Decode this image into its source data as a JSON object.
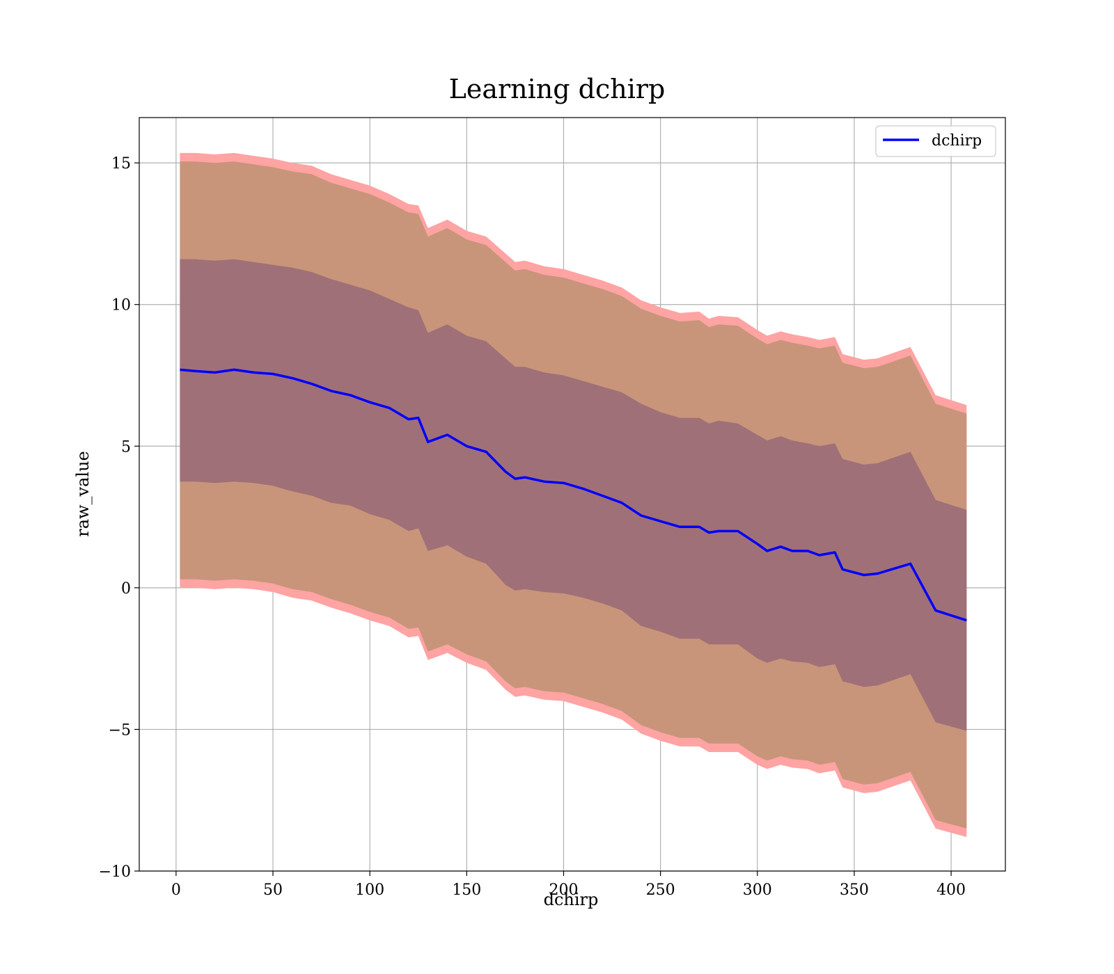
{
  "chart_data": {
    "type": "area",
    "title": "Learning dchirp",
    "xlabel": "dchirp",
    "ylabel": "raw_value",
    "xlim": [
      -19,
      428
    ],
    "ylim": [
      -10,
      16.6
    ],
    "xticks": [
      0,
      50,
      100,
      150,
      200,
      250,
      300,
      350,
      400
    ],
    "xtick_labels": [
      "0",
      "50",
      "100",
      "150",
      "200",
      "250",
      "300",
      "350",
      "400"
    ],
    "yticks": [
      -10,
      -5,
      0,
      5,
      10,
      15
    ],
    "ytick_labels": [
      "−10",
      "−5",
      "0",
      "5",
      "10",
      "15"
    ],
    "grid": true,
    "legend_position": "top-right",
    "colors": {
      "line": "#0000ff",
      "outer_band": "#ffa3a3",
      "middle_band": "#c8957a",
      "inner_band": "#a07078"
    },
    "x": [
      2,
      10,
      20,
      30,
      40,
      50,
      60,
      70,
      80,
      90,
      100,
      110,
      120,
      125,
      130,
      140,
      150,
      160,
      170,
      175,
      180,
      190,
      200,
      210,
      220,
      230,
      240,
      250,
      260,
      270,
      275,
      280,
      290,
      300,
      305,
      312,
      318,
      326,
      332,
      340,
      344,
      355,
      362,
      379,
      392,
      408
    ],
    "series": [
      {
        "name": "dchirp",
        "values": [
          7.7,
          7.65,
          7.6,
          7.7,
          7.6,
          7.55,
          7.4,
          7.2,
          6.95,
          6.8,
          6.55,
          6.35,
          5.95,
          6.0,
          5.15,
          5.4,
          5.0,
          4.8,
          4.1,
          3.85,
          3.9,
          3.75,
          3.7,
          3.5,
          3.25,
          3.0,
          2.55,
          2.35,
          2.15,
          2.15,
          1.95,
          2.0,
          2.0,
          1.55,
          1.3,
          1.45,
          1.3,
          1.3,
          1.15,
          1.25,
          0.65,
          0.45,
          0.5,
          0.85,
          -0.8,
          -1.15
        ]
      }
    ],
    "band_inner_upper": [
      11.6,
      11.6,
      11.55,
      11.6,
      11.5,
      11.4,
      11.3,
      11.15,
      10.9,
      10.7,
      10.5,
      10.2,
      9.9,
      9.8,
      9.0,
      9.3,
      8.9,
      8.7,
      8.1,
      7.8,
      7.8,
      7.6,
      7.5,
      7.3,
      7.1,
      6.9,
      6.5,
      6.2,
      6.0,
      6.0,
      5.8,
      5.9,
      5.8,
      5.4,
      5.2,
      5.35,
      5.2,
      5.1,
      5.0,
      5.1,
      4.55,
      4.35,
      4.4,
      4.8,
      3.1,
      2.75
    ],
    "band_inner_lower": [
      3.75,
      3.75,
      3.7,
      3.75,
      3.7,
      3.6,
      3.4,
      3.25,
      3.0,
      2.9,
      2.6,
      2.4,
      2.0,
      2.1,
      1.3,
      1.5,
      1.1,
      0.85,
      0.1,
      -0.1,
      -0.05,
      -0.15,
      -0.2,
      -0.35,
      -0.55,
      -0.8,
      -1.35,
      -1.55,
      -1.8,
      -1.8,
      -2.0,
      -2.0,
      -2.0,
      -2.5,
      -2.65,
      -2.5,
      -2.6,
      -2.65,
      -2.8,
      -2.7,
      -3.3,
      -3.5,
      -3.45,
      -3.05,
      -4.75,
      -5.05
    ],
    "band_middle_upper": [
      15.05,
      15.05,
      15.0,
      15.05,
      14.95,
      14.85,
      14.7,
      14.6,
      14.3,
      14.1,
      13.9,
      13.6,
      13.25,
      13.2,
      12.4,
      12.7,
      12.3,
      12.1,
      11.5,
      11.2,
      11.25,
      11.05,
      10.95,
      10.75,
      10.55,
      10.3,
      9.85,
      9.6,
      9.4,
      9.45,
      9.2,
      9.3,
      9.25,
      8.8,
      8.6,
      8.75,
      8.65,
      8.55,
      8.45,
      8.55,
      7.95,
      7.75,
      7.8,
      8.2,
      6.5,
      6.15
    ],
    "band_middle_lower": [
      0.3,
      0.3,
      0.25,
      0.3,
      0.25,
      0.15,
      -0.05,
      -0.15,
      -0.4,
      -0.6,
      -0.85,
      -1.05,
      -1.45,
      -1.4,
      -2.25,
      -2.0,
      -2.35,
      -2.6,
      -3.3,
      -3.55,
      -3.5,
      -3.65,
      -3.7,
      -3.9,
      -4.1,
      -4.35,
      -4.85,
      -5.1,
      -5.3,
      -5.3,
      -5.5,
      -5.5,
      -5.5,
      -5.95,
      -6.1,
      -5.95,
      -6.05,
      -6.1,
      -6.25,
      -6.15,
      -6.75,
      -6.95,
      -6.9,
      -6.5,
      -8.2,
      -8.5
    ],
    "band_outer_upper": [
      15.35,
      15.35,
      15.3,
      15.35,
      15.25,
      15.15,
      15.0,
      14.9,
      14.6,
      14.4,
      14.2,
      13.9,
      13.55,
      13.5,
      12.7,
      13.0,
      12.6,
      12.4,
      11.8,
      11.5,
      11.55,
      11.35,
      11.25,
      11.05,
      10.85,
      10.6,
      10.15,
      9.9,
      9.7,
      9.75,
      9.5,
      9.6,
      9.55,
      9.1,
      8.9,
      9.05,
      8.95,
      8.85,
      8.75,
      8.85,
      8.25,
      8.05,
      8.1,
      8.5,
      6.8,
      6.45
    ],
    "band_outer_lower": [
      0.0,
      0.0,
      -0.05,
      0.0,
      -0.05,
      -0.15,
      -0.35,
      -0.45,
      -0.7,
      -0.9,
      -1.15,
      -1.35,
      -1.75,
      -1.7,
      -2.55,
      -2.3,
      -2.65,
      -2.9,
      -3.6,
      -3.85,
      -3.8,
      -3.95,
      -4.0,
      -4.2,
      -4.4,
      -4.65,
      -5.15,
      -5.4,
      -5.6,
      -5.6,
      -5.8,
      -5.8,
      -5.8,
      -6.25,
      -6.4,
      -6.25,
      -6.35,
      -6.4,
      -6.55,
      -6.45,
      -7.05,
      -7.25,
      -7.2,
      -6.8,
      -8.5,
      -8.8
    ]
  }
}
